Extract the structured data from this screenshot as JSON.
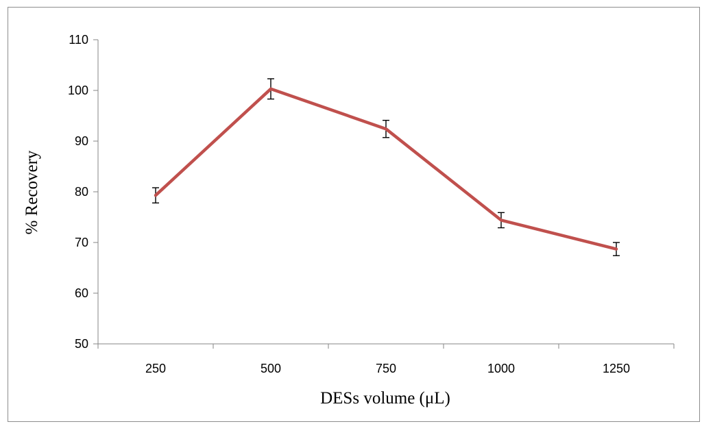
{
  "chart_data": {
    "type": "line",
    "x": [
      250,
      500,
      750,
      1000,
      1250
    ],
    "series": [
      {
        "values": [
          79.3,
          100.3,
          92.4,
          74.4,
          68.7
        ],
        "error": [
          1.5,
          2.0,
          1.7,
          1.5,
          1.3
        ],
        "color": "#c0504d"
      }
    ],
    "xlabel": "DESs volume (μL)",
    "ylabel": "% Recovery",
    "ylim": [
      50,
      110
    ],
    "yticks": [
      50,
      60,
      70,
      80,
      90,
      100,
      110
    ],
    "xticklabels": [
      "250",
      "500",
      "750",
      "1000",
      "1250"
    ],
    "grid": false,
    "legend": "none"
  }
}
